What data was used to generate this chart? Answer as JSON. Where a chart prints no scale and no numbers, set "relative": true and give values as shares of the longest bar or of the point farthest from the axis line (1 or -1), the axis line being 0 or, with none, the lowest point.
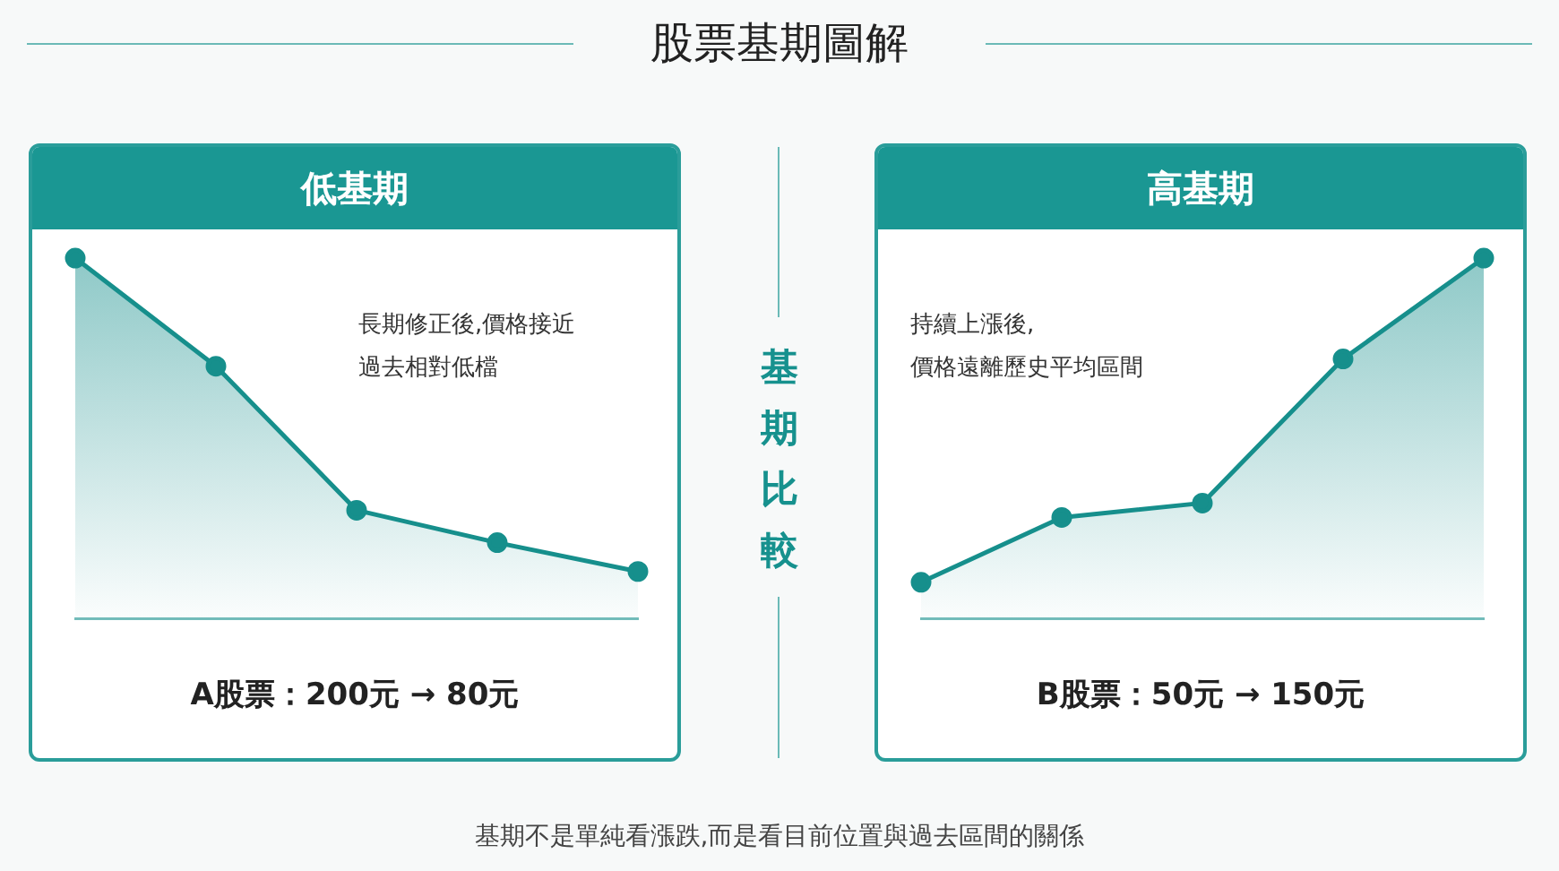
{
  "chart_data": [
    {
      "type": "area",
      "title": "低基期",
      "categories": [
        null,
        null,
        null,
        null,
        null
      ],
      "relative": true,
      "color": "#168f8c",
      "values": [
        1,
        0.7,
        0.3,
        0.21,
        0.13
      ],
      "marker": "circle",
      "line_style": "solid",
      "grid": false,
      "legend": false,
      "annotations": [
        "長期修正後,價格接近過去相對低檔",
        "A股票：200元 → 80元"
      ]
    },
    {
      "type": "area",
      "title": "高基期",
      "categories": [
        null,
        null,
        null,
        null,
        null
      ],
      "relative": true,
      "color": "#168f8c",
      "values": [
        0.1,
        0.28,
        0.32,
        0.72,
        1
      ],
      "marker": "circle",
      "line_style": "solid",
      "grid": false,
      "legend": false,
      "annotations": [
        "持續上漲後,",
        "價格遠離歷史平均區間",
        "B股票：50元 → 150元"
      ]
    },
    {
      "type": "other",
      "title": "股票基期圖解",
      "annotations": [
        "基期比較",
        "基期不是單純看漲跌,而是看目前位置與過去區間的關係"
      ]
    }
  ]
}
